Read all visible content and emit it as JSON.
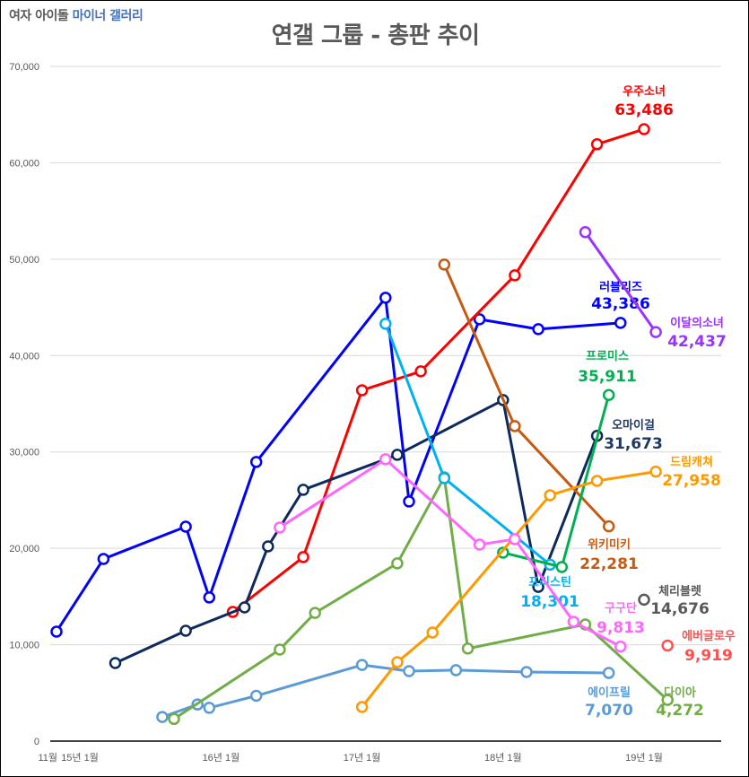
{
  "header": {
    "brand_prefix": "여자 아이돌",
    "brand_highlight": "마이너 갤러리"
  },
  "chart_data": {
    "type": "line",
    "title": "연갤 그룹 - 총판 추이",
    "xlabel": "",
    "ylabel": "",
    "ylim": [
      0,
      70000
    ],
    "yticks": [
      "0",
      "10,000",
      "20,000",
      "30,000",
      "40,000",
      "50,000",
      "60,000",
      "70,000"
    ],
    "ytick_values": [
      0,
      10000,
      20000,
      30000,
      40000,
      50000,
      60000,
      70000
    ],
    "xlim": [
      "2014-11",
      "2019-09"
    ],
    "xticks": [
      {
        "label": "11월",
        "x": "2014-11"
      },
      {
        "label": "15년 1월",
        "x": "2015-01"
      },
      {
        "label": "16년 1월",
        "x": "2016-01"
      },
      {
        "label": "17년 1월",
        "x": "2017-01"
      },
      {
        "label": "18년 1월",
        "x": "2018-01"
      },
      {
        "label": "19년 1월",
        "x": "2019-01"
      }
    ],
    "grid": true,
    "legend": "none (end labels)",
    "series": [
      {
        "name": "러블리즈",
        "color": "#0000ff",
        "end_label": "43,386",
        "x": [
          "2014-11",
          "2015-03",
          "2015-10",
          "2015-12",
          "2016-04",
          "2017-03",
          "2017-05",
          "2017-11",
          "2018-04",
          "2018-11"
        ],
        "y": [
          11360,
          18900,
          22250,
          14900,
          28960,
          46000,
          24860,
          43760,
          42740,
          43386
        ]
      },
      {
        "name": "우주소녀",
        "color": "#ff0000",
        "end_label": "63,486",
        "x": [
          "2016-02",
          "2016-08",
          "2017-01",
          "2017-06",
          "2018-02",
          "2018-09",
          "2019-01"
        ],
        "y": [
          13400,
          19090,
          36400,
          38360,
          48320,
          61920,
          63486
        ]
      },
      {
        "name": "오마이걸",
        "color": "#0d2a5c",
        "end_label": "31,673",
        "x": [
          "2015-04",
          "2015-10",
          "2016-03",
          "2016-05",
          "2016-08",
          "2017-04",
          "2018-01",
          "2018-04",
          "2018-09"
        ],
        "y": [
          8100,
          11450,
          13870,
          20200,
          26070,
          29700,
          35380,
          16000,
          31673
        ]
      },
      {
        "name": "에이프릴",
        "color": "#5b9bd5",
        "end_label": "7,070",
        "x": [
          "2015-08",
          "2015-11",
          "2015-12",
          "2016-04",
          "2017-01",
          "2017-05",
          "2017-09",
          "2018-03",
          "2018-10"
        ],
        "y": [
          2500,
          3800,
          3450,
          4700,
          7900,
          7260,
          7360,
          7170,
          7070
        ]
      },
      {
        "name": "다이아",
        "color": "#70ad47",
        "end_label": "4,272",
        "x": [
          "2015-09",
          "2016-06",
          "2016-09",
          "2017-04",
          "2017-08",
          "2017-10",
          "2018-08",
          "2019-03"
        ],
        "y": [
          2300,
          9500,
          13300,
          18440,
          27370,
          9600,
          12100,
          4272
        ]
      },
      {
        "name": "프리스틴",
        "color": "#00b0f0",
        "end_label": "18,301",
        "x": [
          "2017-03",
          "2017-08",
          "2018-05"
        ],
        "y": [
          43300,
          27280,
          18301
        ]
      },
      {
        "name": "위키미키",
        "color": "#c55a11",
        "end_label": "22,281",
        "x": [
          "2017-08",
          "2018-02",
          "2018-10"
        ],
        "y": [
          49440,
          32680,
          22281
        ]
      },
      {
        "name": "프로미스",
        "color": "#00b050",
        "end_label": "35,911",
        "x": [
          "2018-01",
          "2018-06",
          "2018-10"
        ],
        "y": [
          19550,
          18060,
          35911
        ]
      },
      {
        "name": "드림캐쳐",
        "color": "#ff9900",
        "end_label": "27,958",
        "x": [
          "2017-01",
          "2017-04",
          "2017-07",
          "2018-05",
          "2018-09",
          "2019-02"
        ],
        "y": [
          3540,
          8190,
          11260,
          25510,
          27000,
          27958
        ]
      },
      {
        "name": "구구단",
        "color": "#ff66ff",
        "end_label": "9,813",
        "x": [
          "2016-06",
          "2017-03",
          "2017-11",
          "2018-02",
          "2018-07",
          "2018-11"
        ],
        "y": [
          22160,
          29240,
          20390,
          20950,
          12380,
          9813
        ]
      },
      {
        "name": "이달의소녀",
        "color": "#9933ff",
        "end_label": "42,437",
        "x": [
          "2018-08",
          "2019-02"
        ],
        "y": [
          52800,
          42437
        ]
      },
      {
        "name": "체리블렛",
        "color": "#595959",
        "end_label": "14,676",
        "x": [
          "2019-01"
        ],
        "y": [
          14676
        ]
      },
      {
        "name": "에버글로우",
        "color": "#ff5050",
        "end_label": "9,919",
        "x": [
          "2019-03"
        ],
        "y": [
          9919
        ]
      }
    ]
  }
}
